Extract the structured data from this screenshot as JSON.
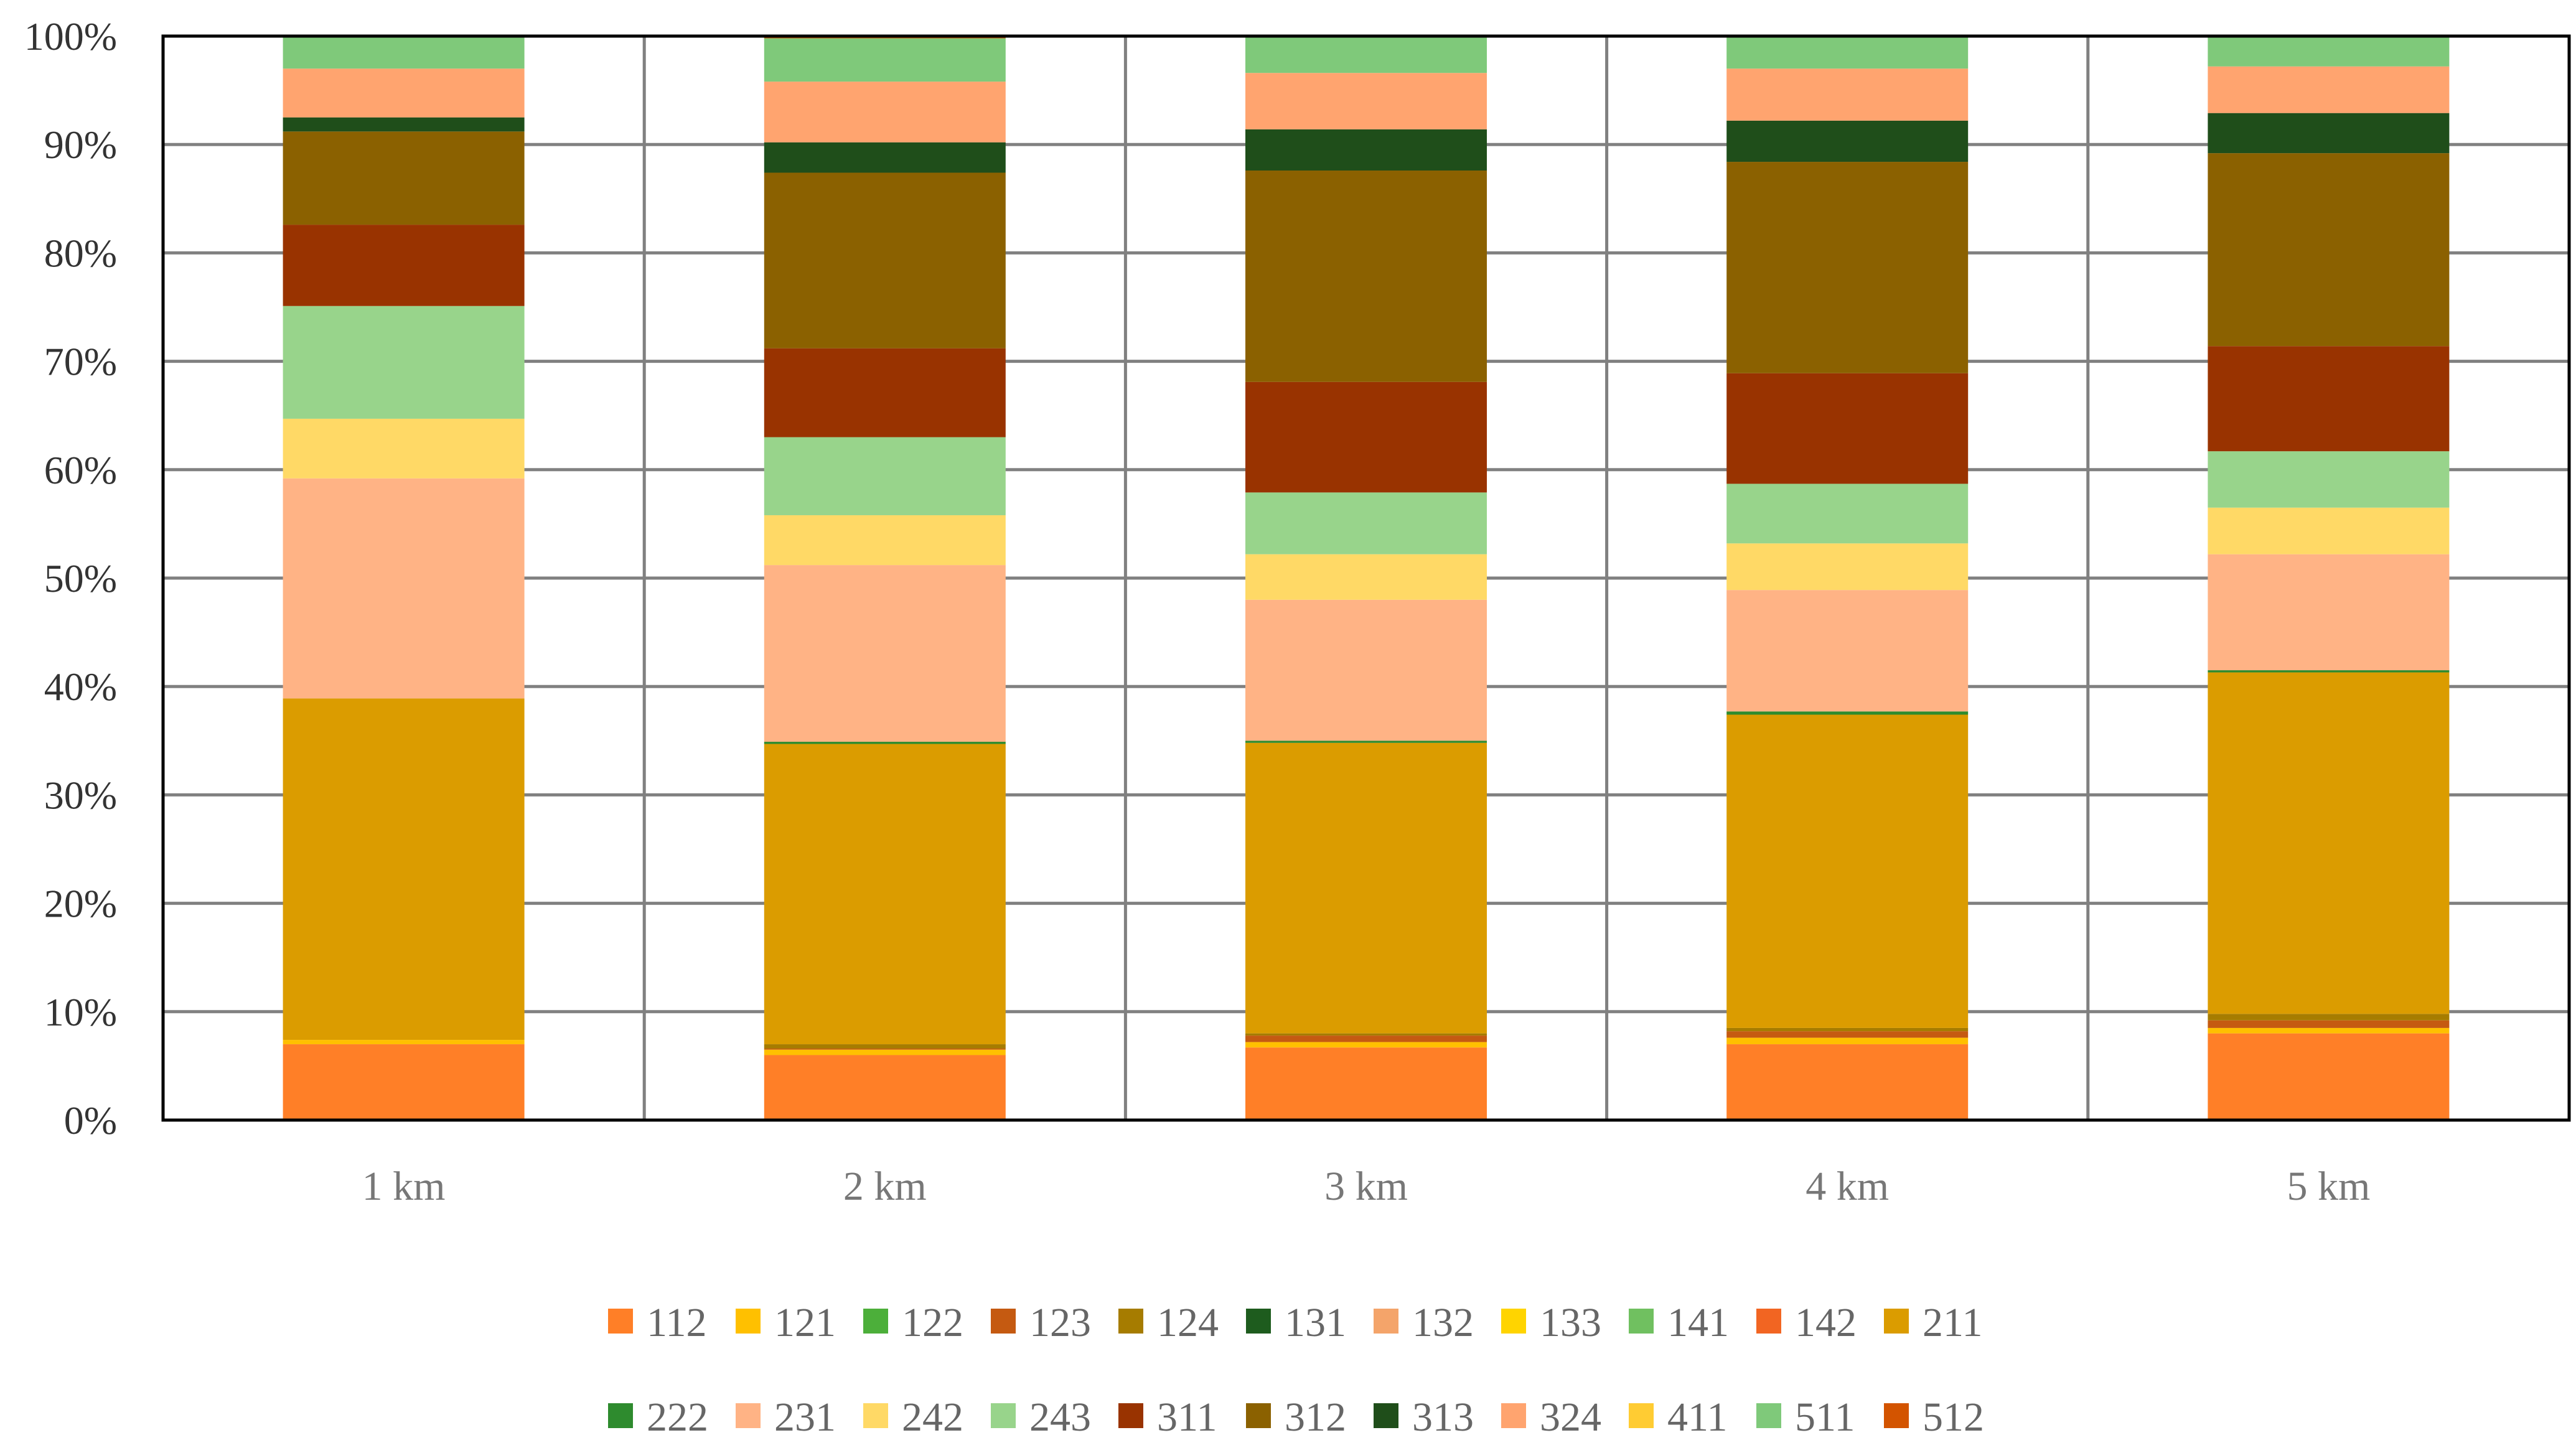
{
  "chart_data": {
    "type": "bar",
    "stacked": true,
    "normalized": true,
    "categories": [
      "1 km",
      "2 km",
      "3 km",
      "4 km",
      "5 km"
    ],
    "ylim": [
      0,
      100
    ],
    "y_tick_labels": [
      "0%",
      "10%",
      "20%",
      "30%",
      "40%",
      "50%",
      "60%",
      "70%",
      "80%",
      "90%",
      "100%"
    ],
    "grid": true,
    "legend_position": "bottom",
    "legend_rows": [
      [
        "112",
        "121",
        "122",
        "123",
        "124",
        "131",
        "132",
        "133",
        "141",
        "142",
        "211"
      ],
      [
        "222",
        "231",
        "242",
        "243",
        "311",
        "312",
        "313",
        "324",
        "411",
        "511",
        "512"
      ]
    ],
    "series": [
      {
        "name": "112",
        "color": "#FF7F27",
        "values": [
          7.0,
          6.0,
          6.7,
          7.0,
          8.0
        ]
      },
      {
        "name": "121",
        "color": "#FFC000",
        "values": [
          0.4,
          0.5,
          0.5,
          0.6,
          0.5
        ]
      },
      {
        "name": "122",
        "color": "#4CAF3A",
        "values": [
          0.0,
          0.0,
          0.0,
          0.0,
          0.0
        ]
      },
      {
        "name": "123",
        "color": "#C55A11",
        "values": [
          0.0,
          0.1,
          0.6,
          0.6,
          0.7
        ]
      },
      {
        "name": "124",
        "color": "#A67C00",
        "values": [
          0.0,
          0.4,
          0.2,
          0.3,
          0.6
        ]
      },
      {
        "name": "131",
        "color": "#1E5C1E",
        "values": [
          0.0,
          0.0,
          0.0,
          0.0,
          0.0
        ]
      },
      {
        "name": "132",
        "color": "#F4A46A",
        "values": [
          0.0,
          0.0,
          0.0,
          0.0,
          0.0
        ]
      },
      {
        "name": "133",
        "color": "#FFD400",
        "values": [
          0.0,
          0.0,
          0.0,
          0.0,
          0.0
        ]
      },
      {
        "name": "141",
        "color": "#70C060",
        "values": [
          0.0,
          0.0,
          0.0,
          0.0,
          0.0
        ]
      },
      {
        "name": "142",
        "color": "#F26522",
        "values": [
          0.0,
          0.0,
          0.0,
          0.0,
          0.0
        ]
      },
      {
        "name": "211",
        "color": "#DB9C00",
        "values": [
          31.5,
          27.7,
          26.8,
          28.9,
          31.5
        ]
      },
      {
        "name": "222",
        "color": "#2E8B2E",
        "values": [
          0.0,
          0.2,
          0.2,
          0.3,
          0.2
        ]
      },
      {
        "name": "231",
        "color": "#FFB385",
        "values": [
          20.3,
          16.3,
          13.0,
          11.2,
          10.7
        ]
      },
      {
        "name": "242",
        "color": "#FFD966",
        "values": [
          5.5,
          4.6,
          4.2,
          4.3,
          4.3
        ]
      },
      {
        "name": "243",
        "color": "#98D48B",
        "values": [
          10.4,
          7.2,
          5.7,
          5.5,
          5.2
        ]
      },
      {
        "name": "311",
        "color": "#993300",
        "values": [
          7.5,
          8.2,
          10.2,
          10.2,
          9.7
        ]
      },
      {
        "name": "312",
        "color": "#8B6100",
        "values": [
          8.6,
          16.2,
          19.5,
          19.5,
          17.8
        ]
      },
      {
        "name": "313",
        "color": "#1F4E1A",
        "values": [
          1.3,
          2.8,
          3.8,
          3.8,
          3.7
        ]
      },
      {
        "name": "324",
        "color": "#FFA46F",
        "values": [
          4.5,
          5.6,
          5.2,
          4.8,
          4.3
        ]
      },
      {
        "name": "411",
        "color": "#FFCC33",
        "values": [
          0.0,
          0.0,
          0.0,
          0.0,
          0.0
        ]
      },
      {
        "name": "511",
        "color": "#7FC97A",
        "values": [
          3.0,
          4.0,
          3.4,
          3.0,
          2.8
        ]
      },
      {
        "name": "512",
        "color": "#D35400",
        "values": [
          0.0,
          0.2,
          0.0,
          0.0,
          0.0
        ]
      }
    ]
  }
}
